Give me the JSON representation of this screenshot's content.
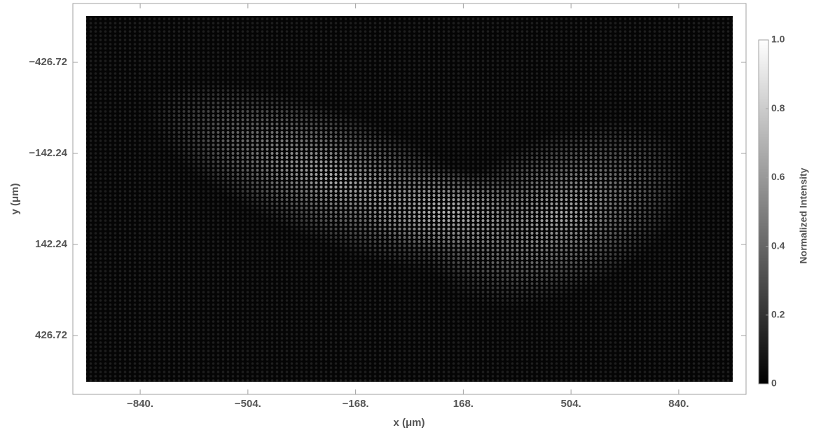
{
  "chart_data": {
    "type": "heatmap",
    "xlabel": "x (μm)",
    "ylabel": "y (μm)",
    "xlim": [
      -1050,
      1050
    ],
    "xticks": [
      {
        "value": -840,
        "label": "−840."
      },
      {
        "value": -504,
        "label": "−504."
      },
      {
        "value": -168,
        "label": "−168."
      },
      {
        "value": 168,
        "label": "168."
      },
      {
        "value": 504,
        "label": "504."
      },
      {
        "value": 840,
        "label": "840."
      }
    ],
    "ylim": [
      -610.5,
      610.5
    ],
    "yticks": [
      {
        "value": -426.72,
        "label": "−426.72"
      },
      {
        "value": -142.24,
        "label": "−142.24"
      },
      142.24,
      426.72
    ],
    "y_inverted": true,
    "colorbar": {
      "label": "Normalized Intensity",
      "lim": [
        0,
        1
      ],
      "ticks": [
        0,
        0.2,
        0.4,
        0.6,
        0.8,
        {
          "value": 1,
          "label": "1.0"
        }
      ]
    }
  }
}
